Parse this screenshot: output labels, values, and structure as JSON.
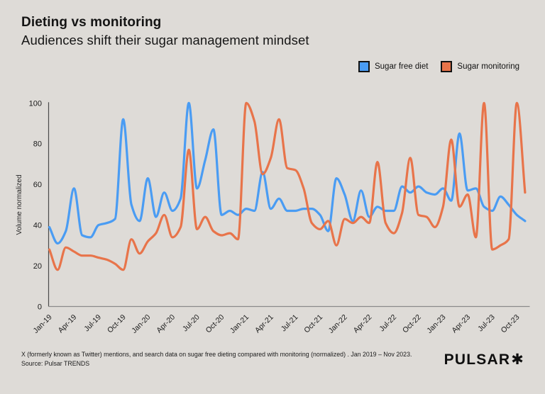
{
  "page": {
    "background": "#dedbd7"
  },
  "header": {
    "title": "Dieting vs monitoring",
    "subtitle": "Audiences shift their sugar management mindset"
  },
  "legend": {
    "items": [
      {
        "label": "Sugar free diet",
        "color": "#4A9CF3"
      },
      {
        "label": "Sugar monitoring",
        "color": "#E8744A"
      }
    ]
  },
  "footer": {
    "caption_line1": "X (formerly known as Twitter) mentions, and search data on sugar free dieting compared with monitoring (normalized) . Jan 2019 – Nov 2023.",
    "caption_line2": "Source: Pulsar TRENDS",
    "brand": "PULSAR",
    "brand_mark": "✱"
  },
  "chart_data": {
    "type": "line",
    "title": "Dieting vs monitoring",
    "xlabel": "",
    "ylabel": "Volume normalized",
    "ylim": [
      0,
      100
    ],
    "yticks": [
      0,
      20,
      40,
      60,
      80,
      100
    ],
    "grid": false,
    "legend_position": "top-right",
    "xtick_every": 3,
    "x": [
      "Jan-19",
      "Feb-19",
      "Mar-19",
      "Apr-19",
      "May-19",
      "Jun-19",
      "Jul-19",
      "Aug-19",
      "Sep-19",
      "Oct-19",
      "Nov-19",
      "Dec-19",
      "Jan-20",
      "Feb-20",
      "Mar-20",
      "Apr-20",
      "May-20",
      "Jun-20",
      "Jul-20",
      "Aug-20",
      "Sep-20",
      "Oct-20",
      "Nov-20",
      "Dec-20",
      "Jan-21",
      "Feb-21",
      "Mar-21",
      "Apr-21",
      "May-21",
      "Jun-21",
      "Jul-21",
      "Aug-21",
      "Sep-21",
      "Oct-21",
      "Nov-21",
      "Dec-21",
      "Jan-22",
      "Feb-22",
      "Mar-22",
      "Apr-22",
      "May-22",
      "Jun-22",
      "Jul-22",
      "Aug-22",
      "Sep-22",
      "Oct-22",
      "Nov-22",
      "Dec-22",
      "Jan-23",
      "Feb-23",
      "Mar-23",
      "Apr-23",
      "May-23",
      "Jun-23",
      "Jul-23",
      "Aug-23",
      "Sep-23",
      "Oct-23",
      "Nov-23"
    ],
    "series": [
      {
        "name": "Sugar free diet",
        "color": "#4A9CF3",
        "values": [
          39,
          31,
          37,
          58,
          35,
          34,
          40,
          41,
          43,
          92,
          50,
          42,
          63,
          44,
          56,
          47,
          53,
          100,
          58,
          72,
          87,
          45,
          47,
          45,
          48,
          47,
          66,
          48,
          53,
          47,
          47,
          48,
          48,
          45,
          37,
          63,
          55,
          42,
          57,
          44,
          49,
          47,
          47,
          59,
          56,
          59,
          56,
          55,
          58,
          52,
          85,
          57,
          58,
          49,
          47,
          54,
          50,
          45,
          42
        ]
      },
      {
        "name": "Sugar monitoring",
        "color": "#E8744A",
        "values": [
          28,
          18,
          29,
          27,
          25,
          25,
          24,
          23,
          21,
          18,
          33,
          26,
          32,
          36,
          45,
          34,
          39,
          77,
          38,
          44,
          37,
          35,
          36,
          33,
          100,
          91,
          65,
          73,
          92,
          68,
          67,
          58,
          41,
          38,
          42,
          30,
          43,
          41,
          44,
          41,
          71,
          41,
          36,
          46,
          73,
          45,
          44,
          39,
          49,
          82,
          49,
          55,
          34,
          100,
          28,
          30,
          33,
          100,
          56
        ]
      }
    ]
  }
}
